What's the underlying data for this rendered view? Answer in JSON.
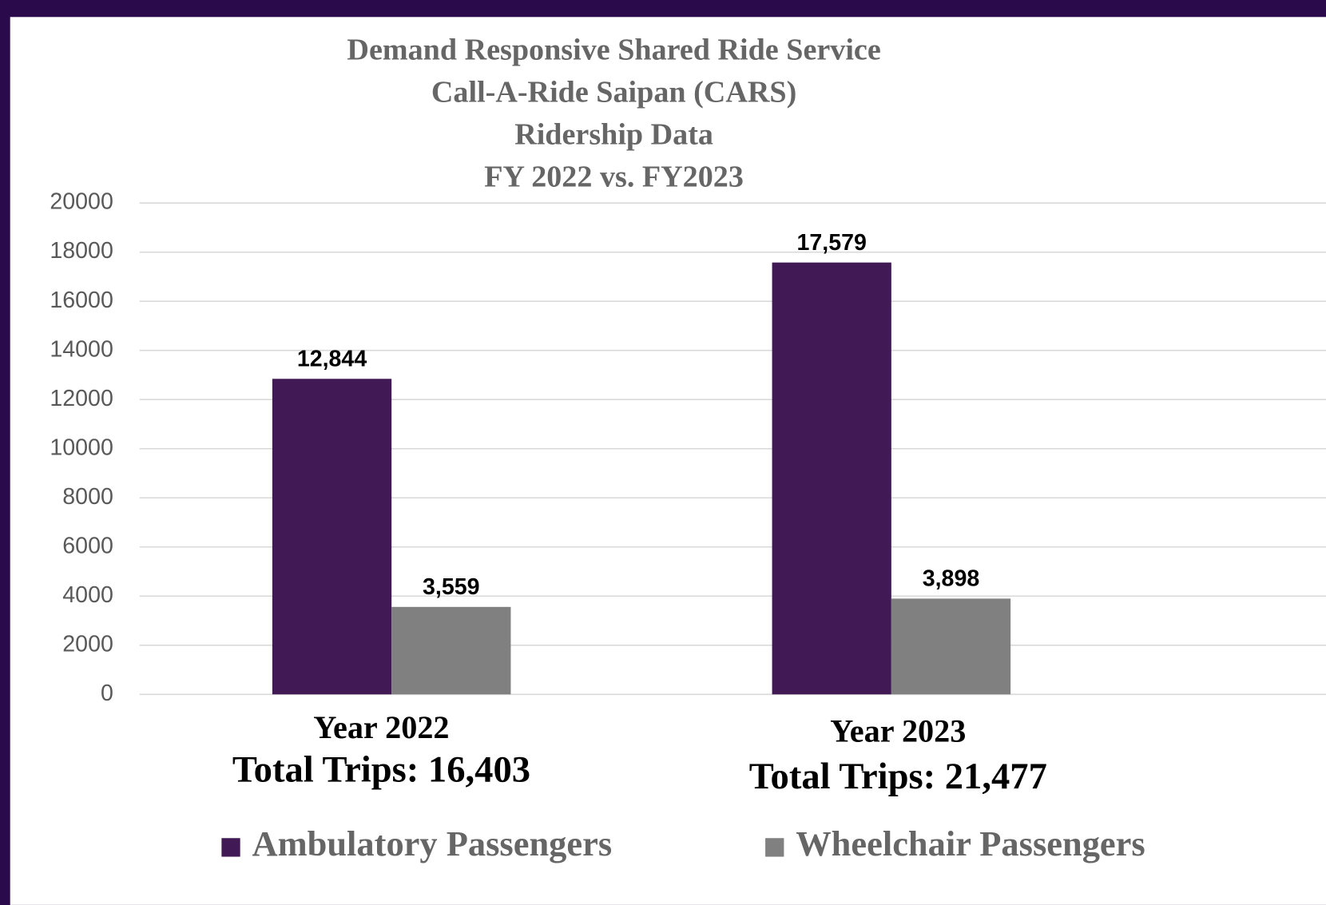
{
  "chart_data": {
    "type": "bar",
    "title": [
      "Demand Responsive Shared Ride Service",
      "Call-A-Ride Saipan (CARS)",
      "Ridership Data",
      "FY 2022 vs. FY2023"
    ],
    "categories": [
      "Year 2022",
      "Year 2023"
    ],
    "annotations": [
      "Total Trips: 16,403",
      "Total Trips: 21,477"
    ],
    "series": [
      {
        "name": "Ambulatory Passengers",
        "color": "#411a55",
        "values": [
          12844,
          17579
        ],
        "value_labels": [
          "12,844",
          "17,579"
        ]
      },
      {
        "name": "Wheelchair Passengers",
        "color": "#808080",
        "values": [
          3559,
          3898
        ],
        "value_labels": [
          "3,559",
          "3,898"
        ]
      }
    ],
    "ylim": [
      0,
      20000
    ],
    "yticks": [
      0,
      2000,
      4000,
      6000,
      8000,
      10000,
      12000,
      14000,
      16000,
      18000,
      20000
    ],
    "grid": true,
    "legend": "bottom"
  }
}
